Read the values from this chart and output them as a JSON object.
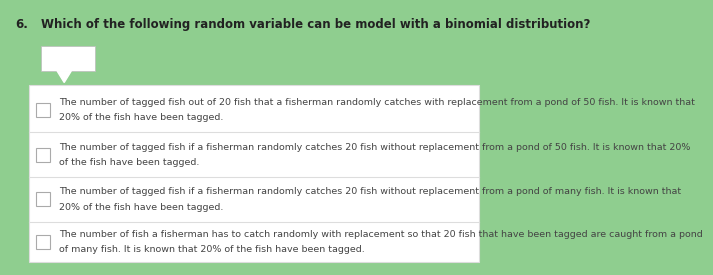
{
  "background_color": "#8fce8f",
  "question_number": "6.",
  "question_text": "Which of the following random variable can be model with a binomial distribution?",
  "text_color": "#444444",
  "options": [
    "The number of tagged fish out of 20 fish that a fisherman randomly catches with replacement from a pond of 50 fish. It is known that\n20% of the fish have been tagged.",
    "The number of tagged fish if a fisherman randomly catches 20 fish without replacement from a pond of 50 fish. It is known that 20%\nof the fish have been tagged.",
    "The number of tagged fish if a fisherman randomly catches 20 fish without replacement from a pond of many fish. It is known that\n20% of the fish have been tagged.",
    "The number of fish a fisherman has to catch randomly with replacement so that 20 fish that have been tagged are caught from a pond\nof many fish. It is known that 20% of the fish have been tagged."
  ]
}
